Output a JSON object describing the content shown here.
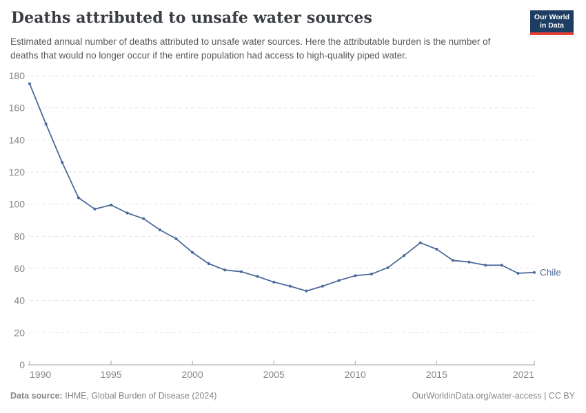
{
  "header": {
    "title": "Deaths attributed to unsafe water sources",
    "subtitle": "Estimated annual number of deaths attributed to unsafe water sources. Here the attributable burden is the number of deaths that would no longer occur if the entire population had access to high-quality piped water.",
    "logo": {
      "line1": "Our World",
      "line2": "in Data",
      "bg_color": "#1d3d63",
      "bar_color": "#e63e36"
    }
  },
  "chart_data": {
    "type": "line",
    "title": "Deaths attributed to unsafe water sources",
    "x": [
      1990,
      1991,
      1992,
      1993,
      1994,
      1995,
      1996,
      1997,
      1998,
      1999,
      2000,
      2001,
      2002,
      2003,
      2004,
      2005,
      2006,
      2007,
      2008,
      2009,
      2010,
      2011,
      2012,
      2013,
      2014,
      2015,
      2016,
      2017,
      2018,
      2019,
      2020,
      2021
    ],
    "series": [
      {
        "name": "Chile",
        "color": "#4c6a9c",
        "values": [
          175,
          150,
          126,
          104,
          97,
          99.5,
          94.5,
          91,
          84,
          78.5,
          70,
          63,
          59,
          58,
          55,
          51.5,
          49,
          46,
          49,
          52.5,
          55.5,
          56.5,
          60.5,
          68,
          76,
          72,
          65,
          64,
          62,
          62,
          57,
          57.5
        ]
      }
    ],
    "xlabel": "",
    "ylabel": "",
    "ylim": [
      0,
      180
    ],
    "ytick_step": 20,
    "yticks": [
      0,
      20,
      40,
      60,
      80,
      100,
      120,
      140,
      160,
      180
    ],
    "xticks": [
      1990,
      1995,
      2000,
      2005,
      2010,
      2015,
      2021
    ],
    "grid": "horizontal-dashed",
    "legend": "line-end-label",
    "colors": {
      "grid": "#e6e6e6",
      "axis": "#a5a5a5",
      "tick_label": "#858585"
    }
  },
  "footer": {
    "source_label": "Data source:",
    "source_text": "IHME, Global Burden of Disease (2024)",
    "attribution": "OurWorldinData.org/water-access | CC BY"
  }
}
